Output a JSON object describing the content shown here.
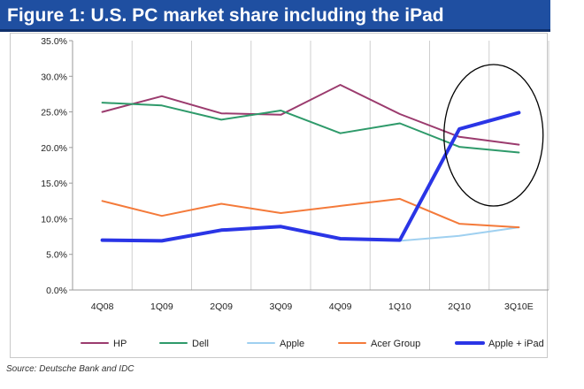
{
  "figure_title": "Figure 1: U.S. PC market share including the iPad",
  "source_note": "Source: Deutsche Bank and IDC",
  "chart_data": {
    "type": "line",
    "categories": [
      "4Q08",
      "1Q09",
      "2Q09",
      "3Q09",
      "4Q09",
      "1Q10",
      "2Q10",
      "3Q10E"
    ],
    "y_tick_labels": [
      "0.0%",
      "5.0%",
      "10.0%",
      "15.0%",
      "20.0%",
      "25.0%",
      "30.0%",
      "35.0%"
    ],
    "ylim": [
      0,
      35
    ],
    "grid": "vertical",
    "legend_position": "bottom",
    "series": [
      {
        "name": "HP",
        "color": "#9b3b6e",
        "width": 2,
        "values": [
          25.0,
          27.2,
          24.8,
          24.6,
          28.8,
          24.7,
          21.5,
          20.4
        ]
      },
      {
        "name": "Dell",
        "color": "#2e9a6a",
        "width": 2,
        "values": [
          26.3,
          25.9,
          23.9,
          25.2,
          22.0,
          23.4,
          20.1,
          19.3
        ]
      },
      {
        "name": "Apple",
        "color": "#9fd0f0",
        "width": 2,
        "values": [
          null,
          null,
          null,
          null,
          null,
          6.9,
          7.6,
          8.8
        ]
      },
      {
        "name": "Acer Group",
        "color": "#f47a3a",
        "width": 2,
        "values": [
          12.5,
          10.4,
          12.1,
          10.8,
          11.8,
          12.8,
          9.3,
          8.8
        ]
      },
      {
        "name": "Apple + iPad",
        "color": "#2a35e6",
        "width": 4,
        "values": [
          7.0,
          6.9,
          8.4,
          8.9,
          7.2,
          7.0,
          22.6,
          24.9
        ]
      }
    ],
    "annotation": "ellipse around 2Q10–3Q10E"
  }
}
